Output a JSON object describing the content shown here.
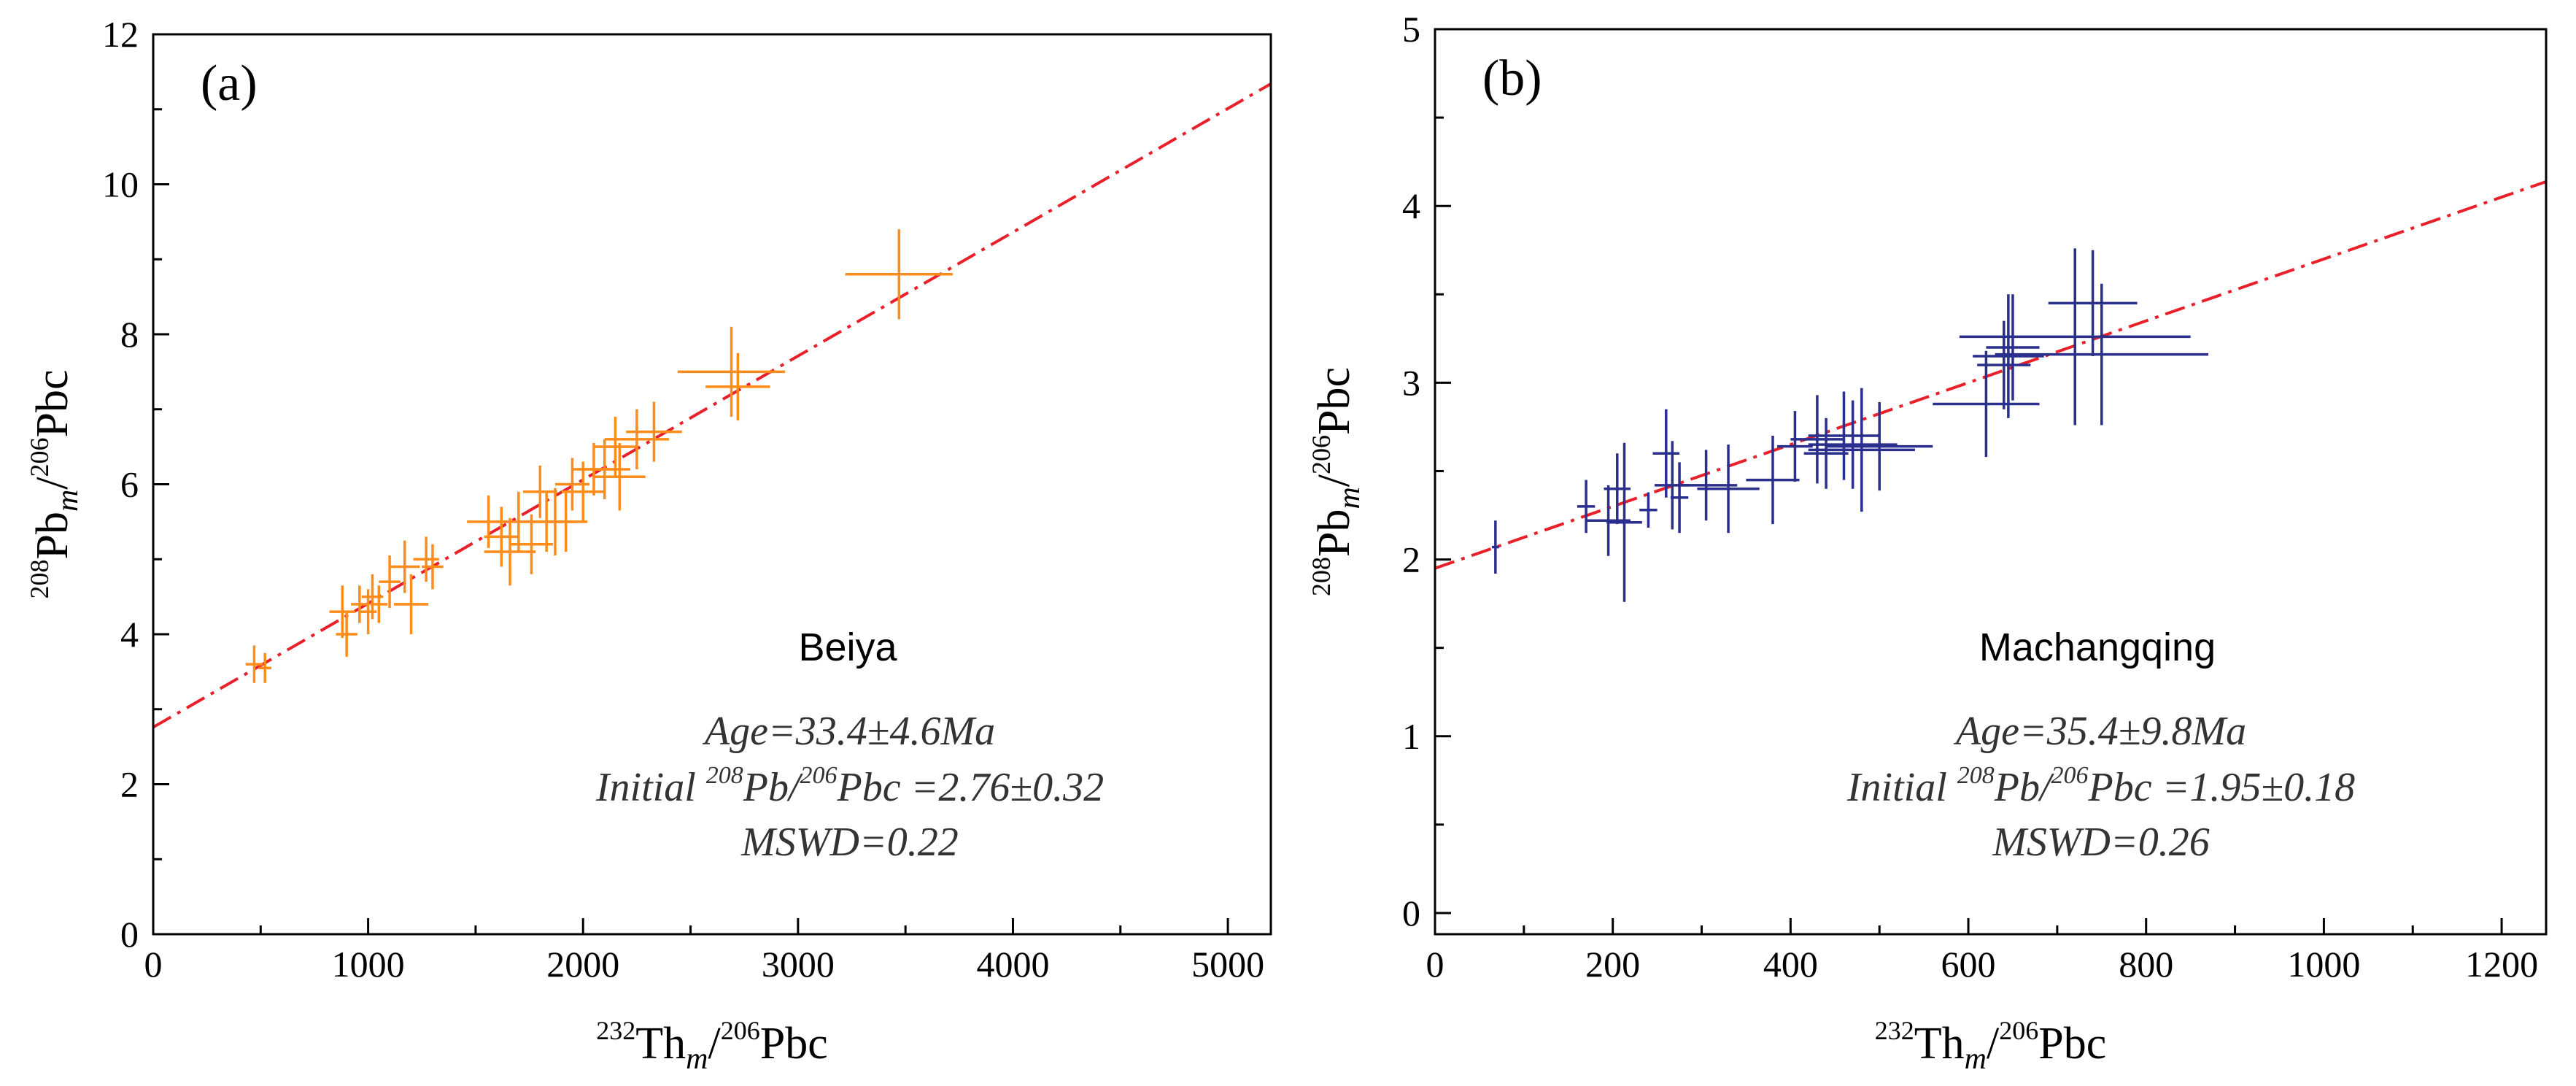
{
  "chart_data": [
    {
      "panel_label": "(a)",
      "type": "scatter",
      "title": "",
      "xlabel": {
        "base": "Th",
        "pre": "232",
        "sub": "m",
        "denom_pre": "206",
        "denom": "Pbc"
      },
      "ylabel": {
        "base": "Pb",
        "pre": "208",
        "sub": "m",
        "denom_pre": "206",
        "denom": "Pbc"
      },
      "xlim": [
        0,
        5200
      ],
      "ylim": [
        0,
        12
      ],
      "xticks": [
        0,
        1000,
        2000,
        3000,
        4000,
        5000
      ],
      "yticks": [
        0,
        2,
        4,
        6,
        8,
        10,
        12
      ],
      "x_minor": 500,
      "y_minor": 1,
      "grid": false,
      "sample_name": "Beiya",
      "annotations": {
        "age": "Age=33.4±4.6Ma",
        "initial_prefix": "Initial ",
        "initial_sup1": "208",
        "initial_mid": "Pb/",
        "initial_sup2": "206",
        "initial_suffix": "Pbc =2.76±0.32",
        "mswd": "MSWD=0.22"
      },
      "marker_color": "#FF8C1A",
      "line_color": "#E8202A",
      "line": {
        "intercept": 2.76,
        "slope": 0.00165
      },
      "points": [
        {
          "x": 470,
          "y": 3.6,
          "ex": 40,
          "ey": 0.25
        },
        {
          "x": 520,
          "y": 3.55,
          "ex": 30,
          "ey": 0.2
        },
        {
          "x": 880,
          "y": 4.3,
          "ex": 60,
          "ey": 0.35
        },
        {
          "x": 900,
          "y": 4.0,
          "ex": 50,
          "ey": 0.3
        },
        {
          "x": 960,
          "y": 4.4,
          "ex": 40,
          "ey": 0.25
        },
        {
          "x": 1000,
          "y": 4.3,
          "ex": 40,
          "ey": 0.3
        },
        {
          "x": 1020,
          "y": 4.5,
          "ex": 50,
          "ey": 0.3
        },
        {
          "x": 1050,
          "y": 4.4,
          "ex": 40,
          "ey": 0.25
        },
        {
          "x": 1100,
          "y": 4.7,
          "ex": 50,
          "ey": 0.35
        },
        {
          "x": 1170,
          "y": 4.9,
          "ex": 70,
          "ey": 0.35
        },
        {
          "x": 1200,
          "y": 4.4,
          "ex": 80,
          "ey": 0.4
        },
        {
          "x": 1270,
          "y": 5.0,
          "ex": 60,
          "ey": 0.3
        },
        {
          "x": 1300,
          "y": 4.9,
          "ex": 50,
          "ey": 0.3
        },
        {
          "x": 1560,
          "y": 5.5,
          "ex": 100,
          "ey": 0.35
        },
        {
          "x": 1620,
          "y": 5.3,
          "ex": 80,
          "ey": 0.4
        },
        {
          "x": 1660,
          "y": 5.1,
          "ex": 120,
          "ey": 0.45
        },
        {
          "x": 1700,
          "y": 5.5,
          "ex": 100,
          "ey": 0.4
        },
        {
          "x": 1760,
          "y": 5.2,
          "ex": 100,
          "ey": 0.4
        },
        {
          "x": 1800,
          "y": 5.9,
          "ex": 80,
          "ey": 0.35
        },
        {
          "x": 1830,
          "y": 5.5,
          "ex": 120,
          "ey": 0.4
        },
        {
          "x": 1870,
          "y": 5.5,
          "ex": 100,
          "ey": 0.45
        },
        {
          "x": 1920,
          "y": 5.5,
          "ex": 100,
          "ey": 0.4
        },
        {
          "x": 1950,
          "y": 6.0,
          "ex": 80,
          "ey": 0.35
        },
        {
          "x": 2000,
          "y": 5.9,
          "ex": 100,
          "ey": 0.4
        },
        {
          "x": 2050,
          "y": 6.2,
          "ex": 100,
          "ey": 0.35
        },
        {
          "x": 2100,
          "y": 6.2,
          "ex": 120,
          "ey": 0.4
        },
        {
          "x": 2150,
          "y": 6.5,
          "ex": 100,
          "ey": 0.4
        },
        {
          "x": 2170,
          "y": 6.1,
          "ex": 120,
          "ey": 0.45
        },
        {
          "x": 2250,
          "y": 6.6,
          "ex": 150,
          "ey": 0.4
        },
        {
          "x": 2330,
          "y": 6.7,
          "ex": 130,
          "ey": 0.4
        },
        {
          "x": 2690,
          "y": 7.5,
          "ex": 250,
          "ey": 0.6
        },
        {
          "x": 2720,
          "y": 7.3,
          "ex": 150,
          "ey": 0.45
        },
        {
          "x": 3470,
          "y": 8.8,
          "ex": 250,
          "ey": 0.6
        }
      ]
    },
    {
      "panel_label": "(b)",
      "type": "scatter",
      "title": "",
      "xlabel": {
        "base": "Th",
        "pre": "232",
        "sub": "m",
        "denom_pre": "206",
        "denom": "Pbc"
      },
      "ylabel": {
        "base": "Pb",
        "pre": "208",
        "sub": "m",
        "denom_pre": "206",
        "denom": "Pbc"
      },
      "xlim": [
        0,
        1250
      ],
      "ylim": [
        -0.12,
        5
      ],
      "xticks": [
        0,
        200,
        400,
        600,
        800,
        1000,
        1200
      ],
      "yticks": [
        0,
        1,
        2,
        3,
        4,
        5
      ],
      "x_minor": 100,
      "y_minor": 0.5,
      "grid": false,
      "sample_name": "Machangqing",
      "annotations": {
        "age": "Age=35.4±9.8Ma",
        "initial_prefix": "Initial ",
        "initial_sup1": "208",
        "initial_mid": "Pb/",
        "initial_sup2": "206",
        "initial_suffix": "Pbc =1.95±0.18",
        "mswd": "MSWD=0.26"
      },
      "marker_color": "#2A2E8C",
      "line_color": "#E8202A",
      "line": {
        "intercept": 1.95,
        "slope": 0.00175
      },
      "points": [
        {
          "x": 68,
          "y": 2.07,
          "ex": 4,
          "ey": 0.15
        },
        {
          "x": 170,
          "y": 2.3,
          "ex": 10,
          "ey": 0.15
        },
        {
          "x": 195,
          "y": 2.22,
          "ex": 25,
          "ey": 0.2
        },
        {
          "x": 205,
          "y": 2.4,
          "ex": 15,
          "ey": 0.2
        },
        {
          "x": 213,
          "y": 2.21,
          "ex": 20,
          "ey": 0.45
        },
        {
          "x": 240,
          "y": 2.28,
          "ex": 10,
          "ey": 0.1
        },
        {
          "x": 260,
          "y": 2.6,
          "ex": 15,
          "ey": 0.25
        },
        {
          "x": 267,
          "y": 2.42,
          "ex": 20,
          "ey": 0.25
        },
        {
          "x": 275,
          "y": 2.35,
          "ex": 10,
          "ey": 0.2
        },
        {
          "x": 305,
          "y": 2.42,
          "ex": 35,
          "ey": 0.2
        },
        {
          "x": 330,
          "y": 2.4,
          "ex": 35,
          "ey": 0.25
        },
        {
          "x": 380,
          "y": 2.45,
          "ex": 30,
          "ey": 0.25
        },
        {
          "x": 405,
          "y": 2.64,
          "ex": 20,
          "ey": 0.2
        },
        {
          "x": 430,
          "y": 2.68,
          "ex": 30,
          "ey": 0.25
        },
        {
          "x": 440,
          "y": 2.6,
          "ex": 25,
          "ey": 0.2
        },
        {
          "x": 460,
          "y": 2.7,
          "ex": 40,
          "ey": 0.25
        },
        {
          "x": 470,
          "y": 2.65,
          "ex": 50,
          "ey": 0.25
        },
        {
          "x": 480,
          "y": 2.62,
          "ex": 60,
          "ey": 0.35
        },
        {
          "x": 500,
          "y": 2.64,
          "ex": 60,
          "ey": 0.25
        },
        {
          "x": 620,
          "y": 2.88,
          "ex": 60,
          "ey": 0.3
        },
        {
          "x": 640,
          "y": 3.1,
          "ex": 30,
          "ey": 0.25
        },
        {
          "x": 645,
          "y": 3.15,
          "ex": 40,
          "ey": 0.35
        },
        {
          "x": 650,
          "y": 3.2,
          "ex": 30,
          "ey": 0.3
        },
        {
          "x": 720,
          "y": 3.26,
          "ex": 130,
          "ey": 0.5
        },
        {
          "x": 740,
          "y": 3.45,
          "ex": 50,
          "ey": 0.3
        },
        {
          "x": 750,
          "y": 3.16,
          "ex": 120,
          "ey": 0.4
        }
      ]
    }
  ]
}
